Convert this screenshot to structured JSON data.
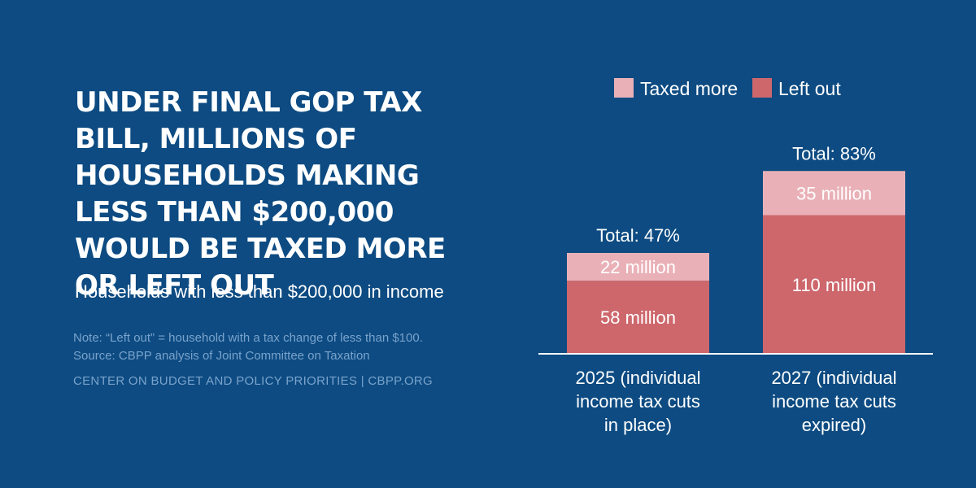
{
  "header": {
    "title": "Under Final GOP Tax Bill, Millions of Households Making Less Than $200,000 Would Be Taxed More or Left Out",
    "subtitle": "Households with less than $200,000 in income"
  },
  "footer": {
    "note_line1": "Note: “Left out” = household with a tax change of less than $100.",
    "note_line2": "Source: CBPP analysis of Joint Committee on Taxation",
    "credit": "CENTER ON BUDGET AND POLICY PRIORITIES | CBPP.ORG"
  },
  "colors": {
    "background": "#0d4b82",
    "taxed_more": "#e9b1b7",
    "left_out": "#cd676c",
    "baseline": "#ffffff"
  },
  "chart_data": {
    "type": "bar",
    "stacked": true,
    "unit": "million households",
    "categories": [
      [
        "2025 (individual",
        "income tax cuts",
        "in place)"
      ],
      [
        "2027 (individual",
        "income tax cuts",
        "expired)"
      ]
    ],
    "series": [
      {
        "name": "Left out",
        "values": [
          58,
          110
        ],
        "labels": [
          "58 million",
          "110 million"
        ]
      },
      {
        "name": "Taxed more",
        "values": [
          22,
          35
        ],
        "labels": [
          "22 million",
          "35 million"
        ]
      }
    ],
    "totals": [
      "Total: 47%",
      "Total: 83%"
    ],
    "legend": [
      {
        "label": "Taxed more",
        "color": "#e9b1b7"
      },
      {
        "label": "Left out",
        "color": "#cd676c"
      }
    ],
    "legend_position": "top",
    "ylim": [
      0,
      145
    ],
    "grid": false
  }
}
